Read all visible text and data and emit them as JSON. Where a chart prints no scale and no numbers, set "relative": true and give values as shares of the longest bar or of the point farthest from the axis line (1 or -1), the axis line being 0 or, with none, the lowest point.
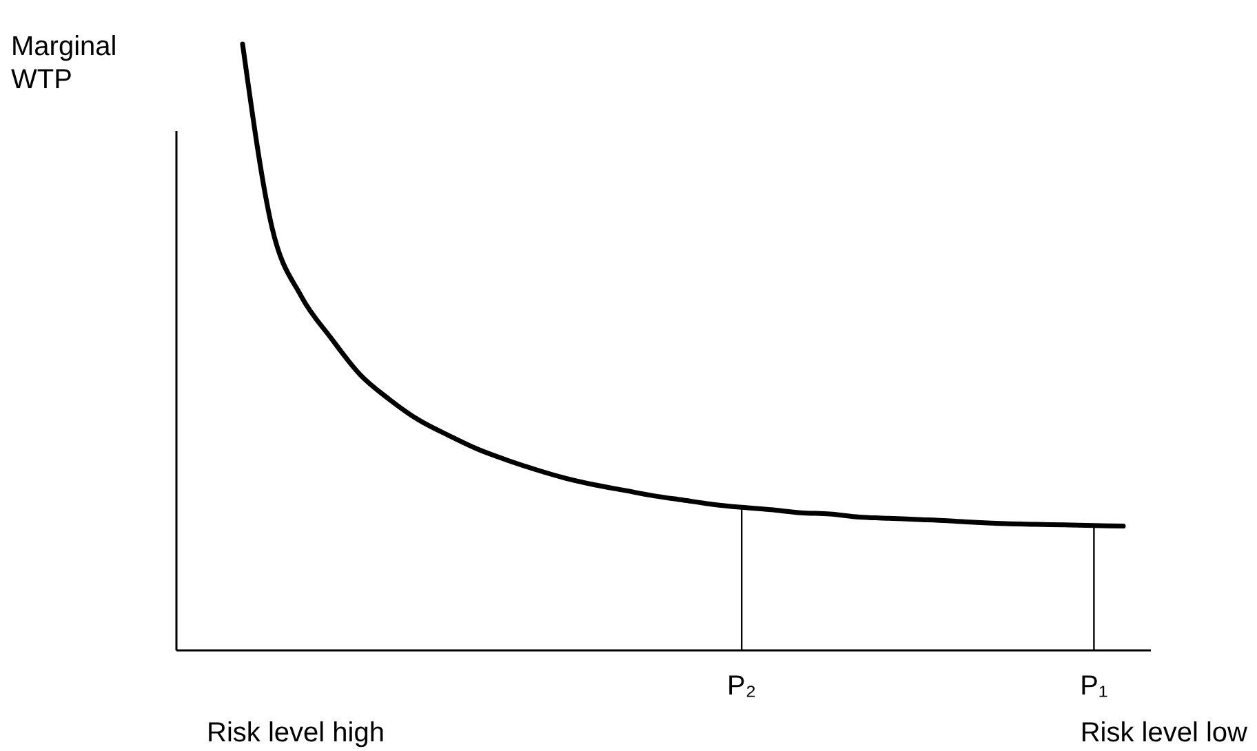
{
  "chart_data": {
    "type": "line",
    "relative": true,
    "ylabel": "Marginal WTP",
    "categories": [
      null,
      null,
      null,
      null,
      null,
      null,
      null,
      null,
      null,
      null,
      null,
      null,
      null,
      null,
      null,
      null,
      null,
      "P₂",
      null,
      null,
      null,
      null,
      null,
      null,
      null,
      null,
      null,
      null,
      null,
      "P₁",
      null
    ],
    "series": [
      {
        "color": "#000000",
        "values": [
          1,
          0.698,
          0.584,
          0.516,
          0.455,
          0.414,
          0.38,
          0.355,
          0.332,
          0.314,
          0.298,
          0.284,
          0.273,
          0.264,
          0.255,
          0.248,
          0.241,
          0.236,
          0.232,
          0.227,
          0.225,
          0.22,
          0.218,
          0.216,
          0.214,
          0.211,
          0.209,
          0.208,
          0.207,
          0.206,
          0.205
        ]
      }
    ],
    "ref_lines": [
      {
        "axis": "x",
        "value": "P₂",
        "color": "#000000"
      },
      {
        "axis": "x",
        "value": "P₁",
        "color": "#000000"
      }
    ],
    "annotations": [
      "Risk level high",
      "Risk level low"
    ],
    "marker": "none",
    "line_style": "solid"
  }
}
